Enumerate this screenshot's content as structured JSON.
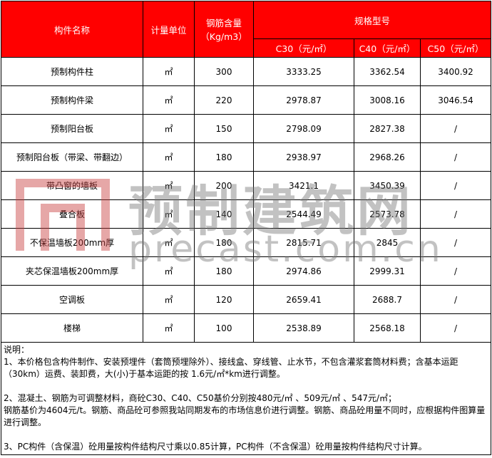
{
  "header": {
    "name": "构件名称",
    "unit": "计量单位",
    "steel": "钢筋含量",
    "steel_unit": "（Kg/m3）",
    "spec": "规格型号",
    "c30": "C30（元/㎡）",
    "c40": "C40（元/㎡）",
    "c50": "C50（元/㎡）"
  },
  "rows": [
    {
      "name": "预制构件柱",
      "unit": "㎡",
      "steel": "300",
      "c30": "3333.25",
      "c40": "3362.54",
      "c50": "3400.92"
    },
    {
      "name": "预制构件梁",
      "unit": "㎡",
      "steel": "220",
      "c30": "2978.87",
      "c40": "3008.16",
      "c50": "3046.54"
    },
    {
      "name": "预制阳台板",
      "unit": "㎡",
      "steel": "150",
      "c30": "2798.09",
      "c40": "2827.38",
      "c50": "/"
    },
    {
      "name": "预制阳台板（带梁、带翻边）",
      "unit": "㎡",
      "steel": "180",
      "c30": "2938.97",
      "c40": "2968.26",
      "c50": "/"
    },
    {
      "name": "带凸窗的墙板",
      "unit": "㎡",
      "steel": "200",
      "c30": "3421.1",
      "c40": "3450.39",
      "c50": "/"
    },
    {
      "name": "叠合板",
      "unit": "㎡",
      "steel": "140",
      "c30": "2544.49",
      "c40": "2573.78",
      "c50": "/"
    },
    {
      "name": "不保温墙板200mm厚",
      "unit": "㎡",
      "steel": "180",
      "c30": "2815.71",
      "c40": "2845",
      "c50": "/"
    },
    {
      "name": "夹芯保温墙板200mm厚",
      "unit": "㎡",
      "steel": "180",
      "c30": "2974.86",
      "c40": "2999.31",
      "c50": "/"
    },
    {
      "name": "空调板",
      "unit": "㎡",
      "steel": "120",
      "c30": "2659.41",
      "c40": "2688.7",
      "c50": "/"
    },
    {
      "name": "楼梯",
      "unit": "㎡",
      "steel": "100",
      "c30": "2538.89",
      "c40": "2568.18",
      "c50": "/"
    }
  ],
  "notes": {
    "title": "说明：",
    "n1": "1、本价格包含构件制作、安装预埋件（套筒预埋除外）、接线盒、穿线管、止水节，不包含灌浆套筒材料费；含基本运距（30km）运费、装卸费，大(小)于基本运距的按 1.6元/㎡*km进行调整。",
    "n2a": "2、混凝土、钢筋为可调整材料，商砼C30、C40、C50基价分别按480元/㎡ 、509元/㎡ 、547元/㎡；",
    "n2b": "钢筋基价为4604元/t。钢筋、商品砼可参照我站同期发布的市场信息价进行调整。钢筋、商品砼用量不同时，应根据构件图算量进行调整。",
    "n3": "3、PC构件（含保温）砼用量按构件结构尺寸乘以0.85计算，PC构件（不含保温）砼用量按构件结构尺寸计算。"
  },
  "watermark": {
    "cn": "预制建筑网",
    "en": "precast.com.cn"
  },
  "colors": {
    "header_bg": "#ff0000",
    "header_text": "#ffffff"
  }
}
